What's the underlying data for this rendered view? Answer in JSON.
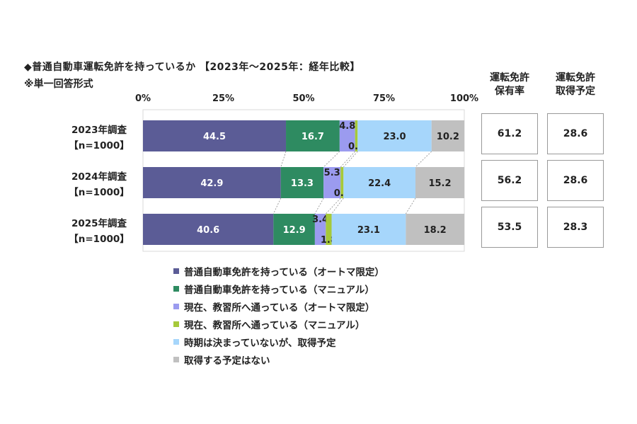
{
  "title": "◆普通自動車運転免許を持っているか 【2023年～2025年：経年比較】",
  "subtitle": "※単一回答形式",
  "colors": {
    "mt_license_at": "#5b5c96",
    "mt_license_manual": "#2e8b61",
    "school_at": "#9b9bef",
    "school_manual": "#a6c93a",
    "undecided": "#a6d6fb",
    "no_plan": "#c0c0c0"
  },
  "chart_data": {
    "type": "bar",
    "orientation": "horizontal",
    "stacked": true,
    "xlim": [
      0,
      100
    ],
    "ticks": [
      "0%",
      "25%",
      "50%",
      "75%",
      "100%"
    ],
    "tick_values": [
      0,
      25,
      50,
      75,
      100
    ],
    "categories": [
      {
        "year": "2023年調査",
        "n": "【n=1000】"
      },
      {
        "year": "2024年調査",
        "n": "【n=1000】"
      },
      {
        "year": "2025年調査",
        "n": "【n=1000】"
      }
    ],
    "series": [
      {
        "name": "普通自動車免許を持っている（オートマ限定）",
        "color": "#5b5c96",
        "values": [
          44.5,
          42.9,
          40.6
        ],
        "labels": [
          "44.5",
          "42.9",
          "40.6"
        ]
      },
      {
        "name": "普通自動車免許を持っている（マニュアル）",
        "color": "#2e8b61",
        "values": [
          16.7,
          13.3,
          12.9
        ],
        "labels": [
          "16.7",
          "13.3",
          "12.9"
        ]
      },
      {
        "name": "現在、教習所へ通っている（オートマ限定）",
        "color": "#9b9bef",
        "values": [
          4.8,
          5.3,
          3.4
        ],
        "labels": [
          "4.8",
          "5.3",
          "3.4"
        ]
      },
      {
        "name": "現在、教習所へ通っている（マニュアル）",
        "color": "#a6c93a",
        "values": [
          0.8,
          0.9,
          1.8
        ],
        "labels": [
          "0.8",
          "0.9",
          "1.8"
        ]
      },
      {
        "name": "時期は決まっていないが、取得予定",
        "color": "#a6d6fb",
        "values": [
          23.0,
          22.4,
          23.1
        ],
        "labels": [
          "23.0",
          "22.4",
          "23.1"
        ]
      },
      {
        "name": "取得する予定はない",
        "color": "#c0c0c0",
        "values": [
          10.2,
          15.2,
          18.2
        ],
        "labels": [
          "10.2",
          "15.2",
          "18.2"
        ]
      }
    ],
    "legend_position": "bottom",
    "grid": false
  },
  "side_columns": [
    {
      "header_line1": "運転免許",
      "header_line2": "保有率",
      "values": [
        "61.2",
        "56.2",
        "53.5"
      ]
    },
    {
      "header_line1": "運転免許",
      "header_line2": "取得予定",
      "values": [
        "28.6",
        "28.6",
        "28.3"
      ]
    }
  ]
}
